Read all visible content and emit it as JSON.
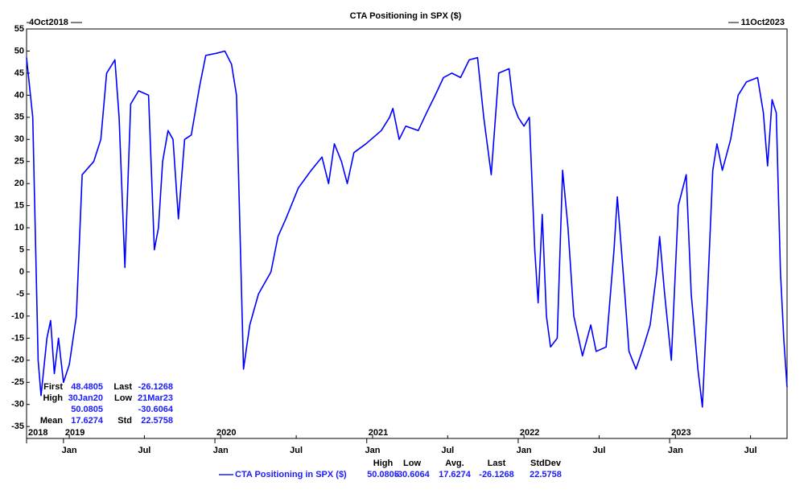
{
  "chart_data": {
    "type": "line",
    "title": "CTA Positioning in SPX ($)",
    "start_label": "4Oct2018",
    "end_label": "11Oct2023",
    "x": [
      "2018-10-04",
      "2018-10-19",
      "2018-11-01",
      "2018-11-08",
      "2018-11-22",
      "2018-12-01",
      "2018-12-10",
      "2018-12-20",
      "2019-01-01",
      "2019-01-15",
      "2019-02-01",
      "2019-02-15",
      "2019-03-15",
      "2019-04-01",
      "2019-04-15",
      "2019-05-05",
      "2019-05-15",
      "2019-05-29",
      "2019-06-12",
      "2019-07-01",
      "2019-07-25",
      "2019-08-08",
      "2019-08-18",
      "2019-08-28",
      "2019-09-10",
      "2019-09-22",
      "2019-10-05",
      "2019-10-20",
      "2019-11-05",
      "2019-11-25",
      "2019-12-10",
      "2020-01-05",
      "2020-01-25",
      "2020-02-10",
      "2020-02-22",
      "2020-03-10",
      "2020-03-25",
      "2020-04-15",
      "2020-05-15",
      "2020-06-01",
      "2020-06-20",
      "2020-07-20",
      "2020-08-20",
      "2020-09-15",
      "2020-10-01",
      "2020-10-15",
      "2020-11-01",
      "2020-11-15",
      "2020-12-01",
      "2020-12-30",
      "2021-02-05",
      "2021-02-25",
      "2021-03-05",
      "2021-03-20",
      "2021-04-05",
      "2021-05-05",
      "2021-05-25",
      "2021-06-15",
      "2021-07-05",
      "2021-07-25",
      "2021-08-15",
      "2021-09-05",
      "2021-09-25",
      "2021-10-10",
      "2021-10-28",
      "2021-11-15",
      "2021-12-10",
      "2021-12-20",
      "2022-01-01",
      "2022-01-15",
      "2022-01-28",
      "2022-02-10",
      "2022-02-18",
      "2022-02-28",
      "2022-03-10",
      "2022-03-20",
      "2022-04-05",
      "2022-04-18",
      "2022-05-01",
      "2022-05-15",
      "2022-06-05",
      "2022-06-25",
      "2022-07-08",
      "2022-08-01",
      "2022-08-20",
      "2022-08-28",
      "2022-09-15",
      "2022-09-25",
      "2022-10-12",
      "2022-10-30",
      "2022-11-15",
      "2022-12-01",
      "2022-12-08",
      "2022-12-20",
      "2023-01-05",
      "2023-01-22",
      "2023-02-10",
      "2023-02-22",
      "2023-03-10",
      "2023-03-21",
      "2023-04-01",
      "2023-04-15",
      "2023-04-25",
      "2023-05-08",
      "2023-05-28",
      "2023-06-15",
      "2023-07-05",
      "2023-08-01",
      "2023-08-15",
      "2023-08-25",
      "2023-09-05",
      "2023-09-15",
      "2023-09-25",
      "2023-10-03",
      "2023-10-11"
    ],
    "series": [
      {
        "name": "CTA Positioning in SPX ($)",
        "color": "#0000ff",
        "values": [
          48.5,
          35,
          -20,
          -28,
          -15,
          -11,
          -23,
          -15,
          -25,
          -21,
          -10,
          22,
          25,
          30,
          45,
          48,
          35,
          1,
          38,
          41,
          40,
          5,
          10,
          25,
          32,
          30,
          12,
          30,
          31,
          42,
          49,
          49.5,
          50,
          47,
          40,
          -22,
          -12,
          -5,
          0,
          8,
          12,
          19,
          23,
          26,
          20,
          29,
          25,
          20,
          27,
          29,
          32,
          35,
          37,
          30,
          33,
          32,
          36,
          40,
          44,
          45,
          44,
          48,
          48.5,
          35,
          22,
          45,
          46,
          38,
          35,
          33,
          35,
          5,
          -7,
          13,
          -10,
          -17,
          -15,
          23,
          10,
          -10,
          -19,
          -12,
          -18,
          -17,
          5,
          17,
          -5,
          -18,
          -22,
          -17,
          -12,
          0,
          8,
          -5,
          -20,
          15,
          22,
          -5,
          -22,
          -30.6,
          -8,
          23,
          29,
          23,
          30,
          40,
          43,
          44,
          36,
          24,
          39,
          36,
          0,
          -15,
          -26.1
        ]
      }
    ],
    "xlim": [
      "2018-10-04",
      "2023-10-11"
    ],
    "xticks": [
      {
        "value": "2019-01-15",
        "label": "Jan"
      },
      {
        "value": "2019-07-15",
        "label": "Jul"
      },
      {
        "value": "2020-01-15",
        "label": "Jan"
      },
      {
        "value": "2020-07-15",
        "label": "Jul"
      },
      {
        "value": "2021-01-15",
        "label": "Jan"
      },
      {
        "value": "2021-07-15",
        "label": "Jul"
      },
      {
        "value": "2022-01-15",
        "label": "Jan"
      },
      {
        "value": "2022-07-15",
        "label": "Jul"
      },
      {
        "value": "2023-01-15",
        "label": "Jan"
      },
      {
        "value": "2023-07-15",
        "label": "Jul"
      }
    ],
    "year_ticks": [
      {
        "value": "2018-10-04",
        "label": "2018"
      },
      {
        "value": "2019-01-01",
        "label": "2019"
      },
      {
        "value": "2020-01-01",
        "label": "2020"
      },
      {
        "value": "2021-01-01",
        "label": "2021"
      },
      {
        "value": "2022-01-01",
        "label": "2022"
      },
      {
        "value": "2023-01-01",
        "label": "2023"
      }
    ],
    "ylim": [
      -37.7,
      55
    ],
    "yticks": [
      -35,
      -30,
      -25,
      -20,
      -15,
      -10,
      -5,
      0,
      5,
      10,
      15,
      20,
      25,
      30,
      35,
      40,
      45,
      50,
      55
    ],
    "grid": false,
    "stats_box": {
      "first_label": "First",
      "first": 48.4805,
      "last_label": "Last",
      "last": -26.1268,
      "high_label": "High",
      "high_date": "30Jan20",
      "low_label": "Low",
      "low_date": "21Mar23",
      "high": 50.0805,
      "low": -30.6064,
      "mean_label": "Mean",
      "mean": 17.6274,
      "std_label": "Std",
      "std": 22.5758
    },
    "legend": {
      "headers": [
        "High",
        "Low",
        "Avg.",
        "Last",
        "StdDev"
      ],
      "values": [
        50.0805,
        -30.6064,
        17.6274,
        -26.1268,
        22.5758
      ]
    }
  }
}
